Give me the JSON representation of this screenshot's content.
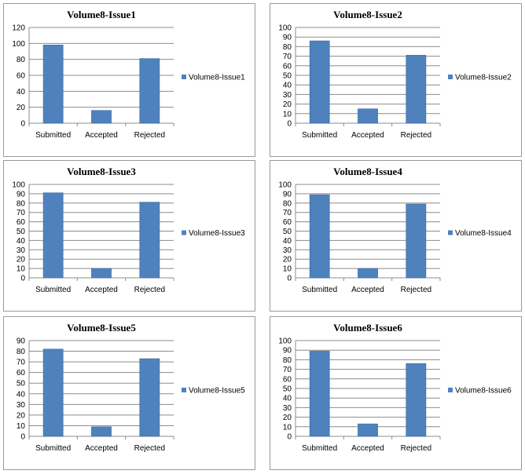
{
  "colors": {
    "bar": "#4f81bd",
    "barStroke": "#3a6aa4",
    "grid": "#8c8c8c",
    "axis": "#8c8c8c",
    "border": "#9a9a9a"
  },
  "chart_data": [
    {
      "type": "bar",
      "title": "Volume8-Issue1",
      "legend": "Volume8-Issue1",
      "legend_position": "right",
      "categories": [
        "Submitted",
        "Accepted",
        "Rejected"
      ],
      "values": [
        98,
        16,
        81
      ],
      "ylim": [
        0,
        120
      ],
      "ystep": 20,
      "grid": true
    },
    {
      "type": "bar",
      "title": "Volume8-Issue2",
      "legend": "Volume8-Issue2",
      "legend_position": "right",
      "categories": [
        "Submitted",
        "Accepted",
        "Rejected"
      ],
      "values": [
        86,
        15,
        71
      ],
      "ylim": [
        0,
        100
      ],
      "ystep": 10,
      "grid": true
    },
    {
      "type": "bar",
      "title": "Volume8-Issue3",
      "legend": "Volume8-Issue3",
      "legend_position": "right",
      "categories": [
        "Submitted",
        "Accepted",
        "Rejected"
      ],
      "values": [
        91,
        10,
        81
      ],
      "ylim": [
        0,
        100
      ],
      "ystep": 10,
      "grid": true
    },
    {
      "type": "bar",
      "title": "Volume8-Issue4",
      "legend": "Volume8-Issue4",
      "legend_position": "right",
      "categories": [
        "Submitted",
        "Accepted",
        "Rejected"
      ],
      "values": [
        89,
        10,
        79
      ],
      "ylim": [
        0,
        100
      ],
      "ystep": 10,
      "grid": true
    },
    {
      "type": "bar",
      "title": "Volume8-Issue5",
      "legend": "Volume8-Issue5",
      "legend_position": "right",
      "categories": [
        "Submitted",
        "Accepted",
        "Rejected"
      ],
      "values": [
        82,
        9,
        73
      ],
      "ylim": [
        0,
        90
      ],
      "ystep": 10,
      "grid": true
    },
    {
      "type": "bar",
      "title": "Volume8-Issue6",
      "legend": "Volume8-Issue6",
      "legend_position": "right",
      "categories": [
        "Submitted",
        "Accepted",
        "Rejected"
      ],
      "values": [
        89,
        13,
        76
      ],
      "ylim": [
        0,
        100
      ],
      "ystep": 10,
      "grid": true
    }
  ]
}
